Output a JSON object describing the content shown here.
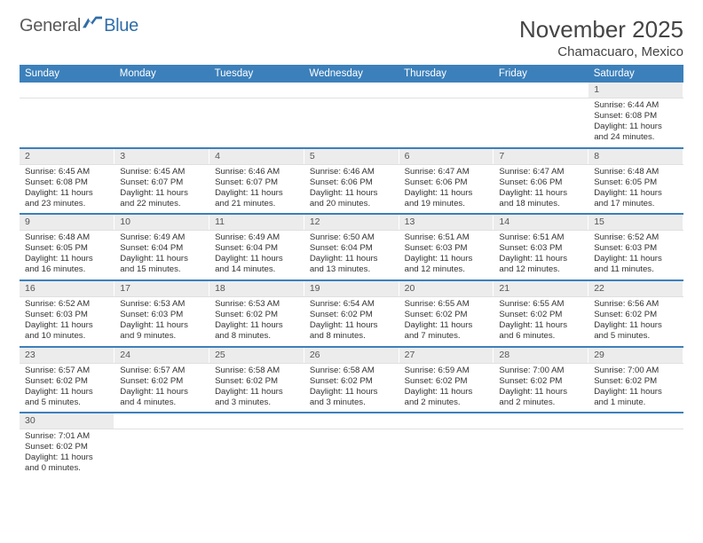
{
  "logo": {
    "part1": "General",
    "part2": "Blue"
  },
  "title": "November 2025",
  "location": "Chamacuaro, Mexico",
  "colors": {
    "header_bg": "#3c80bb",
    "header_text": "#ffffff",
    "daynum_bg": "#ececec",
    "row_divider": "#3c80bb",
    "logo_gray": "#5a5a5a",
    "logo_blue": "#2f6ea8",
    "page_bg": "#ffffff"
  },
  "daysOfWeek": [
    "Sunday",
    "Monday",
    "Tuesday",
    "Wednesday",
    "Thursday",
    "Friday",
    "Saturday"
  ],
  "weeks": [
    [
      null,
      null,
      null,
      null,
      null,
      null,
      {
        "n": "1",
        "sunrise": "6:44 AM",
        "sunset": "6:08 PM",
        "day_h": "11",
        "day_m": "24"
      }
    ],
    [
      {
        "n": "2",
        "sunrise": "6:45 AM",
        "sunset": "6:08 PM",
        "day_h": "11",
        "day_m": "23"
      },
      {
        "n": "3",
        "sunrise": "6:45 AM",
        "sunset": "6:07 PM",
        "day_h": "11",
        "day_m": "22"
      },
      {
        "n": "4",
        "sunrise": "6:46 AM",
        "sunset": "6:07 PM",
        "day_h": "11",
        "day_m": "21"
      },
      {
        "n": "5",
        "sunrise": "6:46 AM",
        "sunset": "6:06 PM",
        "day_h": "11",
        "day_m": "20"
      },
      {
        "n": "6",
        "sunrise": "6:47 AM",
        "sunset": "6:06 PM",
        "day_h": "11",
        "day_m": "19"
      },
      {
        "n": "7",
        "sunrise": "6:47 AM",
        "sunset": "6:06 PM",
        "day_h": "11",
        "day_m": "18"
      },
      {
        "n": "8",
        "sunrise": "6:48 AM",
        "sunset": "6:05 PM",
        "day_h": "11",
        "day_m": "17"
      }
    ],
    [
      {
        "n": "9",
        "sunrise": "6:48 AM",
        "sunset": "6:05 PM",
        "day_h": "11",
        "day_m": "16"
      },
      {
        "n": "10",
        "sunrise": "6:49 AM",
        "sunset": "6:04 PM",
        "day_h": "11",
        "day_m": "15"
      },
      {
        "n": "11",
        "sunrise": "6:49 AM",
        "sunset": "6:04 PM",
        "day_h": "11",
        "day_m": "14"
      },
      {
        "n": "12",
        "sunrise": "6:50 AM",
        "sunset": "6:04 PM",
        "day_h": "11",
        "day_m": "13"
      },
      {
        "n": "13",
        "sunrise": "6:51 AM",
        "sunset": "6:03 PM",
        "day_h": "11",
        "day_m": "12"
      },
      {
        "n": "14",
        "sunrise": "6:51 AM",
        "sunset": "6:03 PM",
        "day_h": "11",
        "day_m": "12"
      },
      {
        "n": "15",
        "sunrise": "6:52 AM",
        "sunset": "6:03 PM",
        "day_h": "11",
        "day_m": "11"
      }
    ],
    [
      {
        "n": "16",
        "sunrise": "6:52 AM",
        "sunset": "6:03 PM",
        "day_h": "11",
        "day_m": "10"
      },
      {
        "n": "17",
        "sunrise": "6:53 AM",
        "sunset": "6:03 PM",
        "day_h": "11",
        "day_m": "9"
      },
      {
        "n": "18",
        "sunrise": "6:53 AM",
        "sunset": "6:02 PM",
        "day_h": "11",
        "day_m": "8"
      },
      {
        "n": "19",
        "sunrise": "6:54 AM",
        "sunset": "6:02 PM",
        "day_h": "11",
        "day_m": "8"
      },
      {
        "n": "20",
        "sunrise": "6:55 AM",
        "sunset": "6:02 PM",
        "day_h": "11",
        "day_m": "7"
      },
      {
        "n": "21",
        "sunrise": "6:55 AM",
        "sunset": "6:02 PM",
        "day_h": "11",
        "day_m": "6"
      },
      {
        "n": "22",
        "sunrise": "6:56 AM",
        "sunset": "6:02 PM",
        "day_h": "11",
        "day_m": "5"
      }
    ],
    [
      {
        "n": "23",
        "sunrise": "6:57 AM",
        "sunset": "6:02 PM",
        "day_h": "11",
        "day_m": "5"
      },
      {
        "n": "24",
        "sunrise": "6:57 AM",
        "sunset": "6:02 PM",
        "day_h": "11",
        "day_m": "4"
      },
      {
        "n": "25",
        "sunrise": "6:58 AM",
        "sunset": "6:02 PM",
        "day_h": "11",
        "day_m": "3"
      },
      {
        "n": "26",
        "sunrise": "6:58 AM",
        "sunset": "6:02 PM",
        "day_h": "11",
        "day_m": "3"
      },
      {
        "n": "27",
        "sunrise": "6:59 AM",
        "sunset": "6:02 PM",
        "day_h": "11",
        "day_m": "2"
      },
      {
        "n": "28",
        "sunrise": "7:00 AM",
        "sunset": "6:02 PM",
        "day_h": "11",
        "day_m": "2"
      },
      {
        "n": "29",
        "sunrise": "7:00 AM",
        "sunset": "6:02 PM",
        "day_h": "11",
        "day_m": "1"
      }
    ],
    [
      {
        "n": "30",
        "sunrise": "7:01 AM",
        "sunset": "6:02 PM",
        "day_h": "11",
        "day_m": "0"
      },
      null,
      null,
      null,
      null,
      null,
      null
    ]
  ],
  "labels": {
    "sunrise": "Sunrise:",
    "sunset": "Sunset:",
    "daylight": "Daylight:",
    "hours": "hours",
    "and": "and",
    "minutes_singular": "minute.",
    "minutes_plural": "minutes."
  }
}
